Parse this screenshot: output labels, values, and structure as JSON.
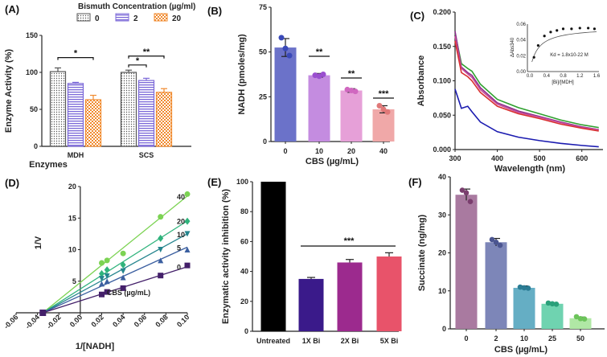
{
  "chart_data": [
    {
      "panel": "(A)",
      "type": "bar",
      "legend_title": "Bismuth Concentration (µg/ml)",
      "categories": [
        "MDH",
        "SCS"
      ],
      "xlabel": "Enzymes",
      "ylabel": "Enzyme Activity (%)",
      "ylim": [
        0,
        150
      ],
      "yticks": [
        "0",
        "50",
        "100",
        "150"
      ],
      "series": [
        {
          "name": "0",
          "values": [
            101,
            100
          ],
          "err": [
            5,
            3
          ],
          "color": "#555555"
        },
        {
          "name": "2",
          "values": [
            85,
            89
          ],
          "err": [
            1.5,
            3
          ],
          "color": "#7b68d8"
        },
        {
          "name": "20",
          "values": [
            63,
            73
          ],
          "err": [
            6,
            5
          ],
          "color": "#f08a2e"
        }
      ],
      "significance": [
        {
          "group": "MDH",
          "from": "0",
          "to": "20",
          "label": "*"
        },
        {
          "group": "SCS",
          "from": "0",
          "to": "2",
          "label": "*"
        },
        {
          "group": "SCS",
          "from": "0",
          "to": "20",
          "label": "**"
        }
      ]
    },
    {
      "panel": "(B)",
      "type": "bar",
      "categories": [
        "0",
        "10",
        "20",
        "40"
      ],
      "values": [
        52.5,
        37,
        28.5,
        18
      ],
      "err": [
        5,
        1,
        1,
        2
      ],
      "points": [
        [
          58,
          52,
          48
        ],
        [
          37,
          36.5,
          37.5
        ],
        [
          29,
          28.5,
          28
        ],
        [
          20,
          18,
          16.5
        ]
      ],
      "colors": [
        "#6b72c9",
        "#c48ce0",
        "#e6a0d8",
        "#f0a8a8"
      ],
      "point_colors": [
        "#3a49b8",
        "#9a4fcf",
        "#d068c0",
        "#e07878"
      ],
      "xlabel": "CBS (µg/mL)",
      "ylabel": "NADH (pmoles/mg)",
      "ylim": [
        0,
        75
      ],
      "yticks": [
        "0",
        "25",
        "50",
        "75"
      ],
      "significance": [
        "**",
        "**",
        "***"
      ]
    },
    {
      "panel": "(C)",
      "type": "line",
      "xlabel": "Wavelength (nm)",
      "ylabel": "Absorbance",
      "xlim": [
        300,
        650
      ],
      "ylim": [
        0,
        0.2
      ],
      "xticks": [
        "300",
        "400",
        "500",
        "600"
      ],
      "yticks": [
        "0.000",
        "0.050",
        "0.100",
        "0.150",
        "0.200"
      ],
      "series": [
        {
          "color": "#2ea02e",
          "x": [
            300,
            315,
            330,
            340,
            360,
            400,
            450,
            500,
            550,
            600,
            640
          ],
          "y": [
            0.17,
            0.125,
            0.118,
            0.114,
            0.095,
            0.073,
            0.061,
            0.052,
            0.043,
            0.036,
            0.032
          ]
        },
        {
          "color": "#8b2e8b",
          "x": [
            300,
            315,
            330,
            340,
            360,
            400,
            450,
            500,
            550,
            600,
            640
          ],
          "y": [
            0.172,
            0.12,
            0.112,
            0.108,
            0.09,
            0.068,
            0.056,
            0.048,
            0.04,
            0.033,
            0.029
          ]
        },
        {
          "color": "#c84c9a",
          "x": [
            300,
            315,
            330,
            340,
            360,
            400,
            450,
            500,
            550,
            600,
            640
          ],
          "y": [
            0.165,
            0.118,
            0.11,
            0.105,
            0.087,
            0.066,
            0.054,
            0.047,
            0.039,
            0.032,
            0.029
          ]
        },
        {
          "color": "#d93030",
          "x": [
            300,
            315,
            330,
            340,
            360,
            400,
            450,
            500,
            550,
            600,
            640
          ],
          "y": [
            0.158,
            0.112,
            0.106,
            0.1,
            0.083,
            0.063,
            0.052,
            0.045,
            0.037,
            0.031,
            0.027
          ]
        },
        {
          "color": "#1b1bb0",
          "x": [
            300,
            315,
            330,
            340,
            360,
            400,
            450,
            500,
            550,
            600,
            640
          ],
          "y": [
            0.088,
            0.06,
            0.063,
            0.055,
            0.04,
            0.026,
            0.018,
            0.013,
            0.009,
            0.006,
            0.004
          ]
        }
      ],
      "inset": {
        "ylabel": "ΔAbs340",
        "xlabel": "[Bi]/[MDH]",
        "annotation": "Kd = 1.8x10-22 M",
        "xticks": [
          "0.0",
          "0.4",
          "0.8",
          "1.2",
          "1.6"
        ],
        "yticks": [
          "0.00",
          "0.02",
          "0.04",
          "0.06"
        ],
        "x": [
          0.1,
          0.2,
          0.35,
          0.5,
          0.65,
          0.8,
          1.0,
          1.2,
          1.4,
          1.55
        ],
        "y": [
          0.018,
          0.033,
          0.045,
          0.05,
          0.052,
          0.054,
          0.054,
          0.055,
          0.055,
          0.054
        ]
      }
    },
    {
      "panel": "(D)",
      "type": "scatter",
      "xlabel": "1/[NADH]",
      "ylabel": "1/V0",
      "xlim": [
        -0.06,
        0.1
      ],
      "ylim": [
        0,
        20
      ],
      "xticks": [
        "-0.06",
        "-0.04",
        "-0.02",
        "0.00",
        "0.02",
        "0.04",
        "0.06",
        "0.08",
        "0.10"
      ],
      "yticks": [
        "0",
        "5",
        "10",
        "15",
        "20"
      ],
      "annotation": "CBS (µg/mL)",
      "x_intercept": -0.035,
      "series": [
        {
          "name": "40",
          "color": "#7cd353",
          "marker": "circle",
          "x": [
            0.02,
            0.025,
            0.04,
            0.075,
            0.1
          ],
          "y": [
            7.9,
            8.3,
            9.4,
            15.2,
            18.8
          ]
        },
        {
          "name": "20",
          "color": "#2fb37c",
          "marker": "diamond",
          "x": [
            0.02,
            0.025,
            0.04,
            0.075,
            0.1
          ],
          "y": [
            6.2,
            6.8,
            7.6,
            11.8,
            14.5
          ]
        },
        {
          "name": "10",
          "color": "#25858e",
          "marker": "tri-down",
          "x": [
            0.02,
            0.025,
            0.04,
            0.075,
            0.1
          ],
          "y": [
            5.4,
            5.8,
            6.6,
            10.0,
            12.5
          ]
        },
        {
          "name": "5",
          "color": "#3b5fa0",
          "marker": "tri-up",
          "x": [
            0.02,
            0.025,
            0.04,
            0.075,
            0.1
          ],
          "y": [
            4.6,
            5.0,
            5.6,
            8.3,
            10.0
          ]
        },
        {
          "name": "0",
          "color": "#44206a",
          "marker": "square",
          "x": [
            0.02,
            0.025,
            0.04,
            0.075,
            0.1
          ],
          "y": [
            2.9,
            3.3,
            3.9,
            5.9,
            7.5
          ]
        }
      ]
    },
    {
      "panel": "(E)",
      "type": "bar",
      "categories": [
        "Untreated",
        "1X Bi",
        "2X Bi",
        "5X Bi"
      ],
      "values": [
        100,
        35,
        46,
        50
      ],
      "err": [
        0,
        1,
        2,
        2.5
      ],
      "colors": [
        "#000000",
        "#3a1a8a",
        "#9c2a8e",
        "#e8536a"
      ],
      "ylabel": "Enzymatic activity inhibition (%)",
      "ylim": [
        0,
        100
      ],
      "yticks": [
        "0",
        "20",
        "40",
        "60",
        "80",
        "100"
      ],
      "significance": "***"
    },
    {
      "panel": "(F)",
      "type": "bar",
      "categories": [
        "0",
        "2",
        "10",
        "25",
        "50"
      ],
      "values": [
        35.3,
        22.8,
        10.8,
        6.6,
        2.8
      ],
      "err": [
        1.5,
        1,
        0.5,
        0.3,
        0.3
      ],
      "points": [
        [
          36.5,
          35.8,
          33.5
        ],
        [
          23.5,
          22.8,
          22
        ],
        [
          11,
          10.8,
          10.7
        ],
        [
          6.8,
          6.6,
          6.5
        ],
        [
          3.2,
          2.7,
          2.6
        ]
      ],
      "colors": [
        "#a97aa0",
        "#7d86b8",
        "#65aec4",
        "#6fd3b0",
        "#b0e8a5"
      ],
      "point_colors": [
        "#7a3e6e",
        "#4b5590",
        "#2b7c94",
        "#2aa07a",
        "#6cc45a"
      ],
      "xlabel": "CBS (µg/mL)",
      "ylabel": "Succinate (ng/mg)",
      "ylim": [
        0,
        40
      ],
      "yticks": [
        "0",
        "10",
        "20",
        "30",
        "40"
      ]
    }
  ]
}
